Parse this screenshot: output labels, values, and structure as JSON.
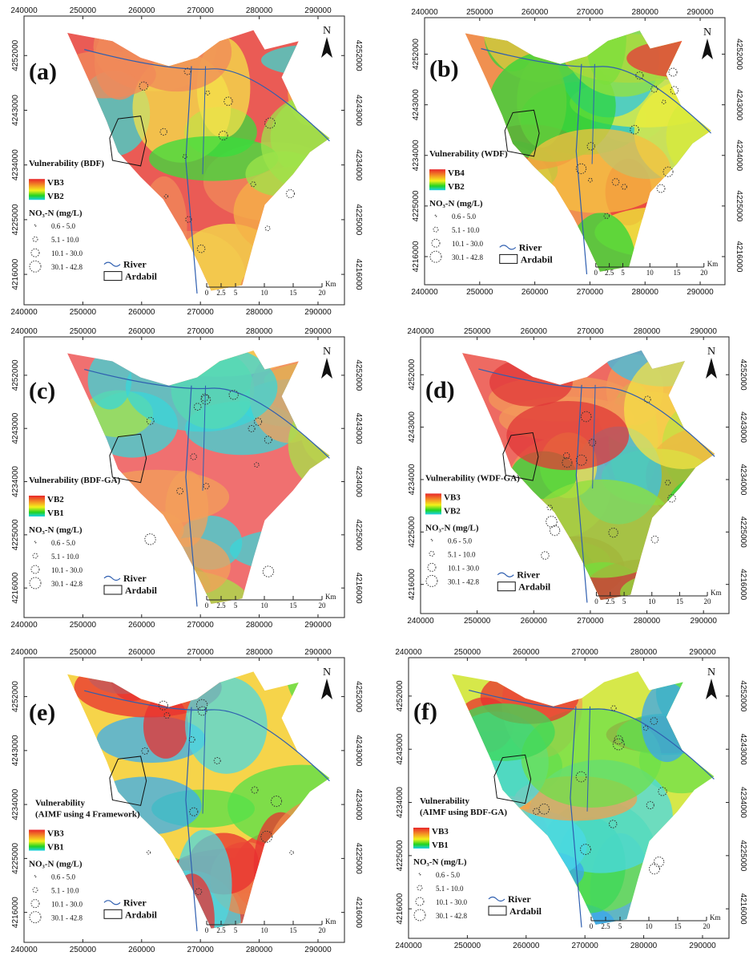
{
  "north": "N",
  "nitrate_title": "NO₃-N (mg/L)",
  "nitrate_classes": [
    "0.6 - 5.0",
    "5.1 - 10.0",
    "10.1 - 30.0",
    "30.1 - 42.8"
  ],
  "river": "River",
  "city": "Ardabil",
  "xlim": [
    240000,
    294500
  ],
  "ylim": [
    4211000,
    4258500
  ],
  "xticks": [
    240000,
    250000,
    260000,
    270000,
    280000,
    290000
  ],
  "yticks": [
    4216000,
    4225000,
    4234000,
    4243000,
    4252000
  ],
  "scale_bar": {
    "labels": [
      0,
      2.5,
      5,
      10,
      15,
      20
    ],
    "unit": "Km"
  },
  "panels": [
    {
      "label": "(a)",
      "legend_title": [
        "Vulnerability (BDF)"
      ],
      "classes": [
        "VB3",
        "VB2"
      ]
    },
    {
      "label": "(b)",
      "legend_title": [
        "Vulnerability (WDF)"
      ],
      "classes": [
        "VB4",
        "VB2"
      ]
    },
    {
      "label": "(c)",
      "legend_title": [
        "Vulnerability (BDF-GA)"
      ],
      "classes": [
        "VB2",
        "VB1"
      ]
    },
    {
      "label": "(d)",
      "legend_title": [
        "Vulnerability (WDF-GA)"
      ],
      "classes": [
        "VB3",
        "VB2"
      ]
    },
    {
      "label": "(e)",
      "legend_title": [
        "Vulnerability",
        "(AIMF using 4 Framework)"
      ],
      "classes": [
        "VB3",
        "VB1"
      ]
    },
    {
      "label": "(f)",
      "legend_title": [
        "Vulnerability",
        "(AIMF using BDF-GA)"
      ],
      "classes": [
        "VB3",
        "VB1"
      ]
    }
  ]
}
